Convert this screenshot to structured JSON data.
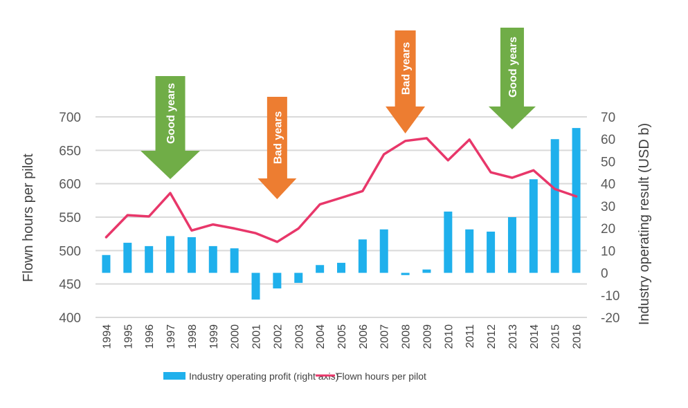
{
  "chart_data": {
    "type": "bar+line",
    "title": "",
    "categories": [
      "1994",
      "1995",
      "1996",
      "1997",
      "1998",
      "1999",
      "2000",
      "2001",
      "2002",
      "2003",
      "2004",
      "2005",
      "2006",
      "2007",
      "2008",
      "2009",
      "2010",
      "2011",
      "2012",
      "2013",
      "2014",
      "2015",
      "2016"
    ],
    "series": [
      {
        "name": "Industry operating profit (right axis)",
        "type": "bar",
        "axis": "right",
        "color": "#1fb0ec",
        "values": [
          8,
          13.5,
          12,
          16.5,
          16,
          12,
          11,
          -12,
          -7,
          -4.5,
          3.5,
          4.5,
          15,
          19.5,
          -1,
          1.5,
          27.5,
          19.5,
          18.5,
          25,
          42,
          60,
          65
        ]
      },
      {
        "name": "Flown hours per pilot",
        "type": "line",
        "axis": "left",
        "color": "#e8376a",
        "values": [
          520,
          553,
          551,
          586,
          530,
          539,
          533,
          526,
          513,
          533,
          569,
          579,
          589,
          644,
          664,
          668,
          635,
          666,
          617,
          609,
          620,
          592,
          581
        ]
      }
    ],
    "left_axis": {
      "label": "Flown hours per pilot",
      "range": [
        400,
        700
      ],
      "ticks": [
        "400",
        "450",
        "500",
        "550",
        "600",
        "650",
        "700"
      ]
    },
    "right_axis": {
      "label": "Industry operating result (USD b)",
      "range": [
        -20,
        70
      ],
      "ticks": [
        "-20",
        "-10",
        "0",
        "10",
        "20",
        "30",
        "40",
        "50",
        "60",
        "70"
      ]
    },
    "xlabel": "",
    "grid": true,
    "legend_position": "bottom",
    "annotations": [
      {
        "text": "Good years",
        "at": "1997",
        "type": "down-arrow",
        "color": "#70ad47"
      },
      {
        "text": "Bad years",
        "at": "2002",
        "type": "down-arrow",
        "color": "#ed7d31"
      },
      {
        "text": "Bad years",
        "at": "2008",
        "type": "down-arrow",
        "color": "#ed7d31"
      },
      {
        "text": "Good years",
        "at": "2013",
        "type": "down-arrow",
        "color": "#70ad47"
      }
    ]
  }
}
